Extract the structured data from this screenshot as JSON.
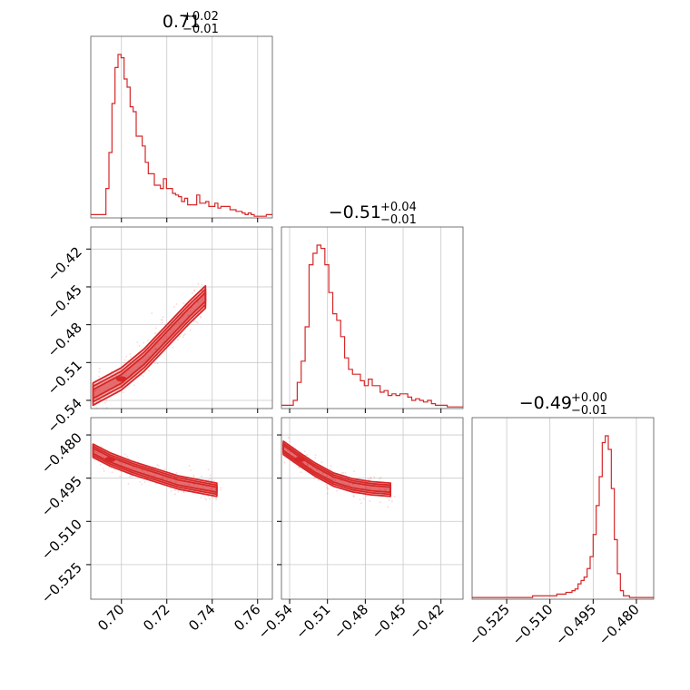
{
  "colors": {
    "main": "#d62728",
    "fill": "#f4b6b6",
    "grid": "#c8c8c8"
  },
  "titles": [
    {
      "value": "0.71",
      "plus": "+0.02",
      "minus": "−0.01"
    },
    {
      "value": "−0.51",
      "plus": "+0.04",
      "minus": "−0.01"
    },
    {
      "value": "−0.49",
      "plus": "+0.00",
      "minus": "−0.01"
    }
  ],
  "chart_data": {
    "type": "corner",
    "grid": true,
    "params": [
      {
        "range": [
          0.6865,
          0.7665
        ],
        "ticks": [
          0.7,
          0.72,
          0.74,
          0.76
        ],
        "tick_labels": [
          "0.70",
          "0.72",
          "0.74",
          "0.76"
        ]
      },
      {
        "range": [
          -0.5465,
          -0.4025
        ],
        "ticks": [
          -0.54,
          -0.51,
          -0.48,
          -0.45,
          -0.42
        ],
        "tick_labels": [
          "−0.54",
          "−0.51",
          "−0.48",
          "−0.45",
          "−0.42"
        ]
      },
      {
        "range": [
          -0.537,
          -0.474
        ],
        "ticks": [
          -0.525,
          -0.51,
          -0.495,
          -0.48
        ],
        "tick_labels": [
          "−0.525",
          "−0.510",
          "−0.495",
          "−0.480"
        ]
      }
    ],
    "histograms": [
      {
        "param": 0,
        "bins": [
          0.6865,
          0.7665
        ],
        "counts": [
          2,
          2,
          2,
          2,
          2,
          18,
          40,
          70,
          92,
          100,
          98,
          85,
          80,
          68,
          65,
          50,
          50,
          44,
          34,
          27,
          27,
          20,
          20,
          18,
          24,
          18,
          18,
          15,
          14,
          13,
          10,
          12,
          8,
          8,
          8,
          14,
          9,
          9,
          10,
          7,
          7,
          9,
          6,
          7,
          7,
          7,
          5,
          5,
          4,
          4,
          3,
          2,
          3,
          2,
          1,
          1,
          1,
          1,
          2,
          2
        ]
      },
      {
        "param": 1,
        "bins": [
          -0.5465,
          -0.4025
        ],
        "counts": [
          2,
          2,
          2,
          5,
          16,
          29,
          50,
          88,
          95,
          100,
          98,
          88,
          71,
          58,
          54,
          44,
          31,
          24,
          21,
          21,
          17,
          14,
          18,
          14,
          14,
          10,
          11,
          8,
          9,
          8,
          9,
          9,
          7,
          5,
          6,
          5,
          4,
          5,
          3,
          2,
          2,
          2,
          1,
          1,
          1,
          1
        ]
      },
      {
        "param": 2,
        "bins": [
          -0.537,
          -0.474
        ],
        "counts": [
          1,
          1,
          1,
          1,
          1,
          1,
          1,
          1,
          1,
          1,
          1,
          1,
          1,
          1,
          1,
          1,
          1,
          1,
          1,
          1,
          2,
          2,
          2,
          2,
          2,
          2,
          2,
          2,
          3,
          3,
          3,
          4,
          4,
          5,
          6,
          9,
          11,
          13,
          18,
          25,
          38,
          55,
          72,
          92,
          96,
          88,
          65,
          35,
          15,
          5,
          2,
          2,
          1,
          1,
          1,
          1,
          1,
          1,
          1,
          1
        ]
      }
    ],
    "contours": [
      {
        "x": 0,
        "y": 1,
        "band_center": [
          [
            0.6875,
            -0.535
          ],
          [
            0.7,
            -0.523
          ],
          [
            0.71,
            -0.508
          ],
          [
            0.72,
            -0.489
          ],
          [
            0.73,
            -0.47
          ],
          [
            0.737,
            -0.458
          ]
        ],
        "level_widths": [
          0.0035,
          0.0062,
          0.0088
        ]
      },
      {
        "x": 0,
        "y": 2,
        "band_center": [
          [
            0.6875,
            -0.4855
          ],
          [
            0.695,
            -0.4885
          ],
          [
            0.705,
            -0.4915
          ],
          [
            0.715,
            -0.494
          ],
          [
            0.725,
            -0.4965
          ],
          [
            0.735,
            -0.498
          ],
          [
            0.742,
            -0.499
          ]
        ],
        "level_widths": [
          0.0009,
          0.0016,
          0.0023
        ]
      },
      {
        "x": 1,
        "y": 2,
        "band_center": [
          [
            -0.545,
            -0.4845
          ],
          [
            -0.532,
            -0.4885
          ],
          [
            -0.52,
            -0.492
          ],
          [
            -0.505,
            -0.4955
          ],
          [
            -0.49,
            -0.4975
          ],
          [
            -0.475,
            -0.4985
          ],
          [
            -0.46,
            -0.499
          ]
        ],
        "level_widths": [
          0.0009,
          0.0016,
          0.0023
        ]
      }
    ]
  }
}
